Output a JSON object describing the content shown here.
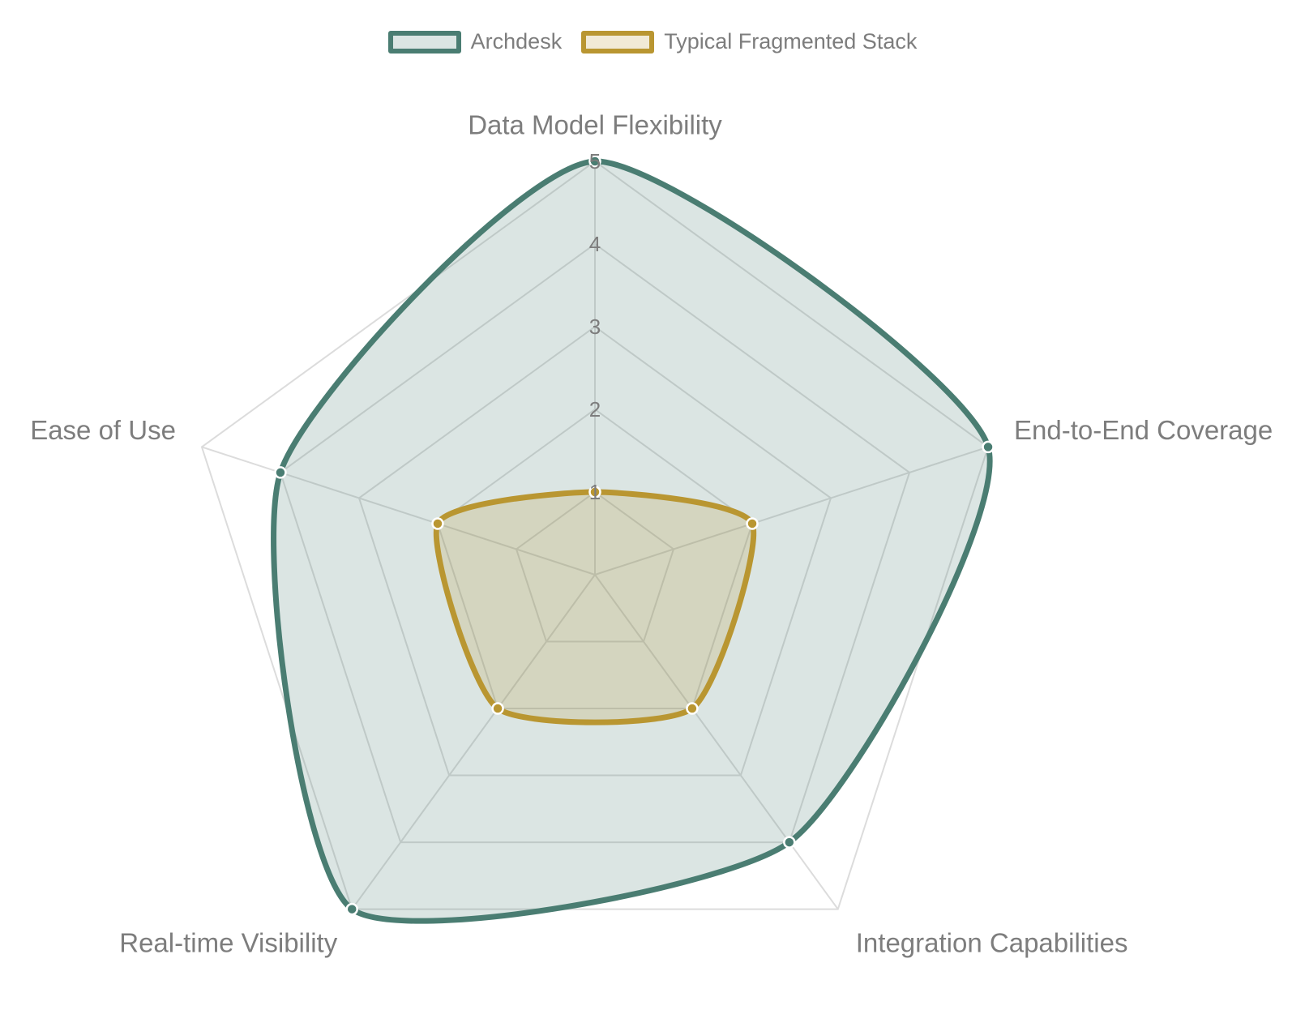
{
  "chart_data": {
    "type": "radar",
    "title": "",
    "categories": [
      "Data Model Flexibility",
      "End-to-End Coverage",
      "Integration Capabilities",
      "Real-time Visibility",
      "Ease of Use"
    ],
    "rlim": [
      0,
      5
    ],
    "ticks": [
      "1",
      "2",
      "3",
      "4",
      "5"
    ],
    "legend_position": "top",
    "series": [
      {
        "name": "Archdesk",
        "values": [
          5,
          5,
          4,
          5,
          4
        ],
        "color": "#4a7d72",
        "fill": "rgba(74,125,114,0.2)"
      },
      {
        "name": "Typical Fragmented Stack",
        "values": [
          1,
          2,
          2,
          2,
          2
        ],
        "color": "#b99631",
        "fill": "rgba(185,150,49,0.2)"
      }
    ]
  }
}
